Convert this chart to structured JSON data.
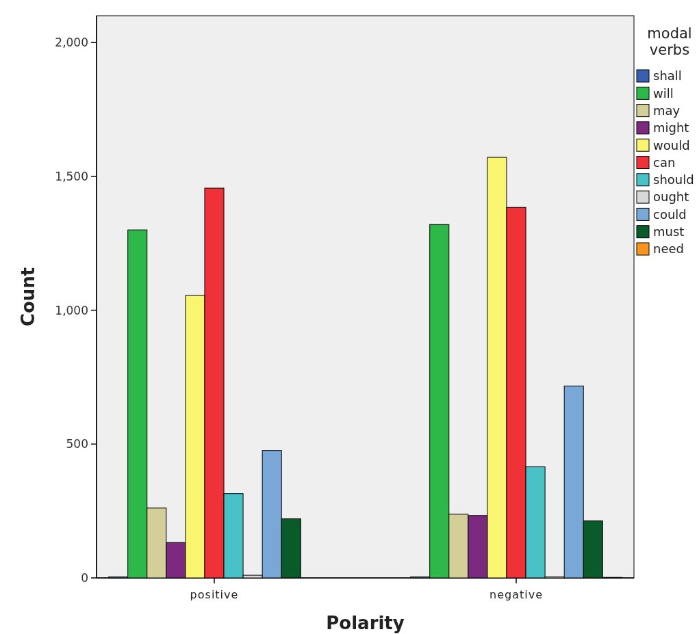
{
  "chart_data": {
    "type": "bar",
    "xlabel": "Polarity",
    "ylabel": "Count",
    "legend_title": "modal verbs",
    "legend": "right",
    "grid": false,
    "categories": [
      "positive",
      "negative"
    ],
    "ylim": [
      0,
      2100
    ],
    "yticks": [
      {
        "value": 0,
        "label": "0"
      },
      {
        "value": 500,
        "label": "500"
      },
      {
        "value": 1000,
        "label": "1,000"
      },
      {
        "value": 1500,
        "label": "1,500"
      },
      {
        "value": 2000,
        "label": "2,000"
      }
    ],
    "series": [
      {
        "name": "shall",
        "color": "#3a5fad",
        "values": [
          4,
          4
        ]
      },
      {
        "name": "will",
        "color": "#2eb84a",
        "values": [
          1300,
          1320
        ]
      },
      {
        "name": "may",
        "color": "#d4cf98",
        "values": [
          261,
          238
        ]
      },
      {
        "name": "might",
        "color": "#7b2a7f",
        "values": [
          132,
          233
        ]
      },
      {
        "name": "would",
        "color": "#f9f571",
        "values": [
          1055,
          1571
        ]
      },
      {
        "name": "can",
        "color": "#ef3237",
        "values": [
          1456,
          1384
        ]
      },
      {
        "name": "should",
        "color": "#48c1c7",
        "values": [
          315,
          415
        ]
      },
      {
        "name": "ought",
        "color": "#d8d8d8",
        "values": [
          10,
          4
        ]
      },
      {
        "name": "could",
        "color": "#7aa8d6",
        "values": [
          476,
          717
        ]
      },
      {
        "name": "must",
        "color": "#0b5a2a",
        "values": [
          221,
          213
        ]
      },
      {
        "name": "need",
        "color": "#f7941d",
        "values": [
          0,
          2
        ]
      }
    ]
  }
}
